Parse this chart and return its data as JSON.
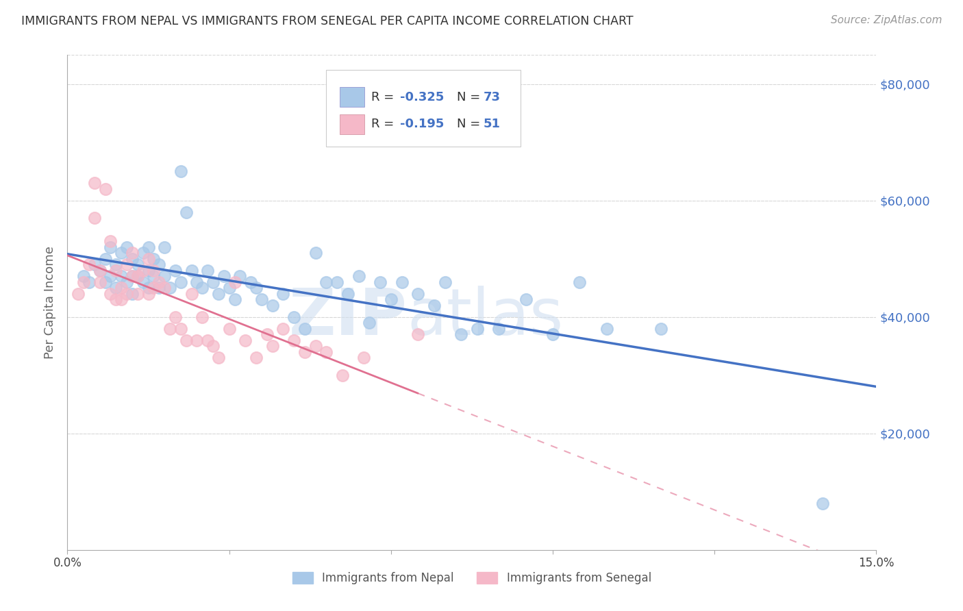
{
  "title": "IMMIGRANTS FROM NEPAL VS IMMIGRANTS FROM SENEGAL PER CAPITA INCOME CORRELATION CHART",
  "source": "Source: ZipAtlas.com",
  "ylabel": "Per Capita Income",
  "legend_nepal": "Immigrants from Nepal",
  "legend_senegal": "Immigrants from Senegal",
  "nepal_R": "-0.325",
  "nepal_N": "73",
  "senegal_R": "-0.195",
  "senegal_N": "51",
  "xlim": [
    0.0,
    0.15
  ],
  "ylim": [
    0,
    85000
  ],
  "yticks": [
    20000,
    40000,
    60000,
    80000
  ],
  "ytick_labels": [
    "$20,000",
    "$40,000",
    "$60,000",
    "$80,000"
  ],
  "xticks": [
    0.0,
    0.03,
    0.06,
    0.09,
    0.12,
    0.15
  ],
  "xtick_labels": [
    "0.0%",
    "",
    "",
    "",
    "",
    "15.0%"
  ],
  "nepal_color": "#a8c8e8",
  "senegal_color": "#f5b8c8",
  "nepal_line_color": "#4472c4",
  "senegal_line_color": "#e07090",
  "right_axis_color": "#4472c4",
  "nepal_x": [
    0.003,
    0.004,
    0.005,
    0.006,
    0.007,
    0.007,
    0.008,
    0.008,
    0.009,
    0.009,
    0.01,
    0.01,
    0.011,
    0.011,
    0.012,
    0.012,
    0.012,
    0.013,
    0.013,
    0.014,
    0.014,
    0.015,
    0.015,
    0.015,
    0.016,
    0.016,
    0.017,
    0.017,
    0.018,
    0.018,
    0.019,
    0.02,
    0.021,
    0.021,
    0.022,
    0.023,
    0.024,
    0.025,
    0.026,
    0.027,
    0.028,
    0.029,
    0.03,
    0.031,
    0.032,
    0.034,
    0.035,
    0.036,
    0.038,
    0.04,
    0.042,
    0.044,
    0.046,
    0.048,
    0.05,
    0.052,
    0.054,
    0.056,
    0.058,
    0.06,
    0.062,
    0.065,
    0.068,
    0.07,
    0.073,
    0.076,
    0.08,
    0.085,
    0.09,
    0.095,
    0.1,
    0.11,
    0.14
  ],
  "nepal_y": [
    47000,
    46000,
    49000,
    48000,
    50000,
    46000,
    52000,
    47000,
    49000,
    45000,
    51000,
    47000,
    52000,
    46000,
    50000,
    47000,
    44000,
    49000,
    47000,
    51000,
    46000,
    52000,
    48000,
    45000,
    50000,
    47000,
    49000,
    45000,
    52000,
    47000,
    45000,
    48000,
    65000,
    46000,
    58000,
    48000,
    46000,
    45000,
    48000,
    46000,
    44000,
    47000,
    45000,
    43000,
    47000,
    46000,
    45000,
    43000,
    42000,
    44000,
    40000,
    38000,
    51000,
    46000,
    46000,
    44000,
    47000,
    39000,
    46000,
    43000,
    46000,
    44000,
    42000,
    46000,
    37000,
    38000,
    38000,
    43000,
    37000,
    46000,
    38000,
    38000,
    8000
  ],
  "senegal_x": [
    0.002,
    0.003,
    0.004,
    0.005,
    0.005,
    0.006,
    0.006,
    0.007,
    0.008,
    0.008,
    0.009,
    0.009,
    0.01,
    0.01,
    0.011,
    0.011,
    0.012,
    0.012,
    0.013,
    0.013,
    0.014,
    0.015,
    0.015,
    0.016,
    0.016,
    0.017,
    0.018,
    0.019,
    0.02,
    0.021,
    0.022,
    0.023,
    0.024,
    0.025,
    0.026,
    0.027,
    0.028,
    0.03,
    0.031,
    0.033,
    0.035,
    0.037,
    0.038,
    0.04,
    0.042,
    0.044,
    0.046,
    0.048,
    0.051,
    0.055,
    0.065
  ],
  "senegal_y": [
    44000,
    46000,
    49000,
    63000,
    57000,
    48000,
    46000,
    62000,
    53000,
    44000,
    48000,
    43000,
    45000,
    43000,
    49000,
    44000,
    51000,
    47000,
    47000,
    44000,
    48000,
    50000,
    44000,
    48000,
    45000,
    46000,
    45000,
    38000,
    40000,
    38000,
    36000,
    44000,
    36000,
    40000,
    36000,
    35000,
    33000,
    38000,
    46000,
    36000,
    33000,
    37000,
    35000,
    38000,
    36000,
    34000,
    35000,
    34000,
    30000,
    33000,
    37000
  ],
  "watermark_zip": "ZIP",
  "watermark_atlas": "atlas",
  "background_color": "#ffffff",
  "grid_color": "#d8d8d8",
  "nepal_line_x0": 0.0,
  "nepal_line_x1": 0.15,
  "senegal_line_x0": 0.0,
  "senegal_line_x1": 0.15
}
